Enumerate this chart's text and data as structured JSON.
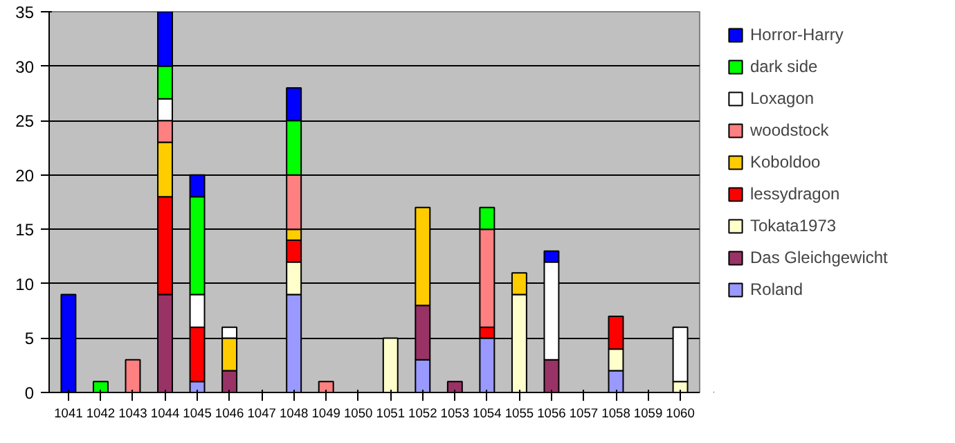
{
  "chart_data": {
    "type": "bar",
    "stacked": true,
    "categories": [
      "1041",
      "1042",
      "1043",
      "1044",
      "1045",
      "1046",
      "1047",
      "1048",
      "1049",
      "1050",
      "1051",
      "1052",
      "1053",
      "1054",
      "1055",
      "1056",
      "1057",
      "1058",
      "1059",
      "1060"
    ],
    "series": [
      {
        "name": "Roland",
        "color": "#9999ff",
        "values": [
          0,
          0,
          0,
          0,
          1,
          0,
          0,
          9,
          0,
          0,
          0,
          3,
          0,
          5,
          0,
          0,
          0,
          2,
          0,
          0
        ]
      },
      {
        "name": "Das Gleichgewicht",
        "color": "#993366",
        "values": [
          0,
          0,
          0,
          9,
          0,
          2,
          0,
          0,
          0,
          0,
          0,
          5,
          1,
          0,
          0,
          3,
          0,
          0,
          0,
          0
        ]
      },
      {
        "name": "Tokata1973",
        "color": "#ffffcc",
        "values": [
          0,
          0,
          0,
          0,
          0,
          0,
          0,
          3,
          0,
          0,
          5,
          0,
          0,
          0,
          9,
          0,
          0,
          2,
          0,
          1
        ]
      },
      {
        "name": "lessydragon",
        "color": "#ff0000",
        "values": [
          0,
          0,
          0,
          9,
          5,
          0,
          0,
          2,
          0,
          0,
          0,
          0,
          0,
          1,
          0,
          0,
          0,
          3,
          0,
          0
        ]
      },
      {
        "name": "Koboldoo",
        "color": "#ffcc00",
        "values": [
          0,
          0,
          0,
          5,
          0,
          3,
          0,
          1,
          0,
          0,
          0,
          9,
          0,
          0,
          2,
          0,
          0,
          0,
          0,
          0
        ]
      },
      {
        "name": "woodstock",
        "color": "#ff8080",
        "values": [
          0,
          0,
          3,
          2,
          0,
          0,
          0,
          5,
          1,
          0,
          0,
          0,
          0,
          9,
          0,
          0,
          0,
          0,
          0,
          0
        ]
      },
      {
        "name": "Loxagon",
        "color": "#ffffff",
        "values": [
          0,
          0,
          0,
          2,
          3,
          1,
          0,
          0,
          0,
          0,
          0,
          0,
          0,
          0,
          0,
          9,
          0,
          0,
          0,
          5
        ]
      },
      {
        "name": "dark side",
        "color": "#00ff00",
        "values": [
          0,
          1,
          0,
          3,
          9,
          0,
          0,
          5,
          0,
          0,
          0,
          0,
          0,
          2,
          0,
          0,
          0,
          0,
          0,
          0
        ]
      },
      {
        "name": "Horror-Harry",
        "color": "#0000ff",
        "values": [
          9,
          0,
          0,
          5,
          2,
          0,
          0,
          3,
          0,
          0,
          0,
          0,
          0,
          0,
          0,
          1,
          0,
          0,
          0,
          0
        ]
      }
    ],
    "ylim": [
      0,
      35
    ],
    "yticks": [
      0,
      5,
      10,
      15,
      20,
      25,
      30,
      35
    ],
    "grid": "y",
    "legend": "right"
  }
}
